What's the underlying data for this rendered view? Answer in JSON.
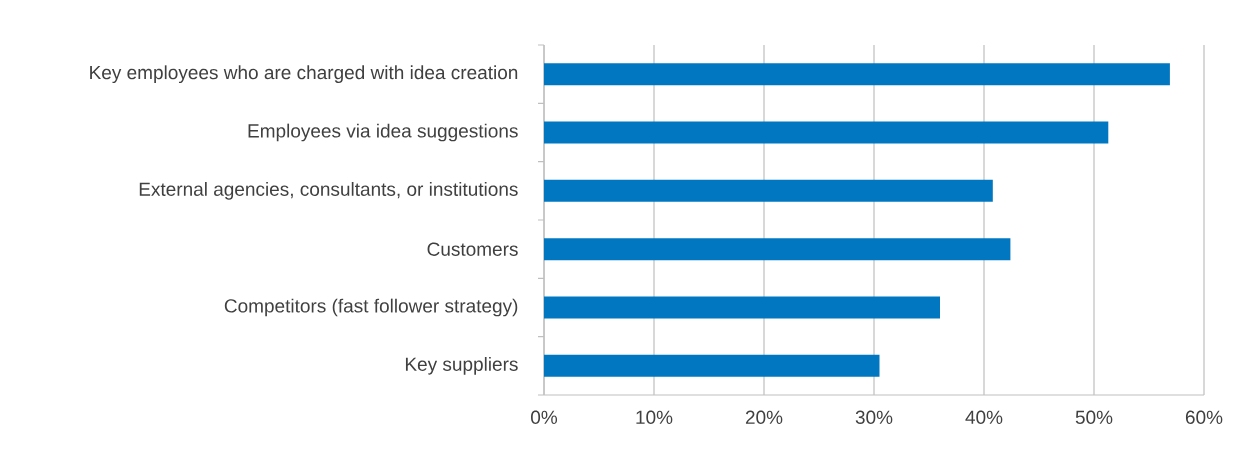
{
  "chart_data": {
    "type": "bar",
    "orientation": "horizontal",
    "categories": [
      "Key employees who are charged with idea creation",
      "Employees  via idea suggestions",
      "External agencies, consultants, or institutions",
      "Customers",
      "Competitors (fast follower strategy)",
      "Key suppliers"
    ],
    "values": [
      56.9,
      51.3,
      40.8,
      42.4,
      36.0,
      30.5
    ],
    "color": "#0077c0",
    "xlim": [
      0,
      60
    ],
    "xticks": [
      {
        "value": 0,
        "label": "0%"
      },
      {
        "value": 10,
        "label": "10%"
      },
      {
        "value": 20,
        "label": "20%"
      },
      {
        "value": 30,
        "label": "30%"
      },
      {
        "value": 40,
        "label": "40%"
      },
      {
        "value": 50,
        "label": "50%"
      },
      {
        "value": 60,
        "label": "60%"
      }
    ],
    "grid": "x"
  }
}
